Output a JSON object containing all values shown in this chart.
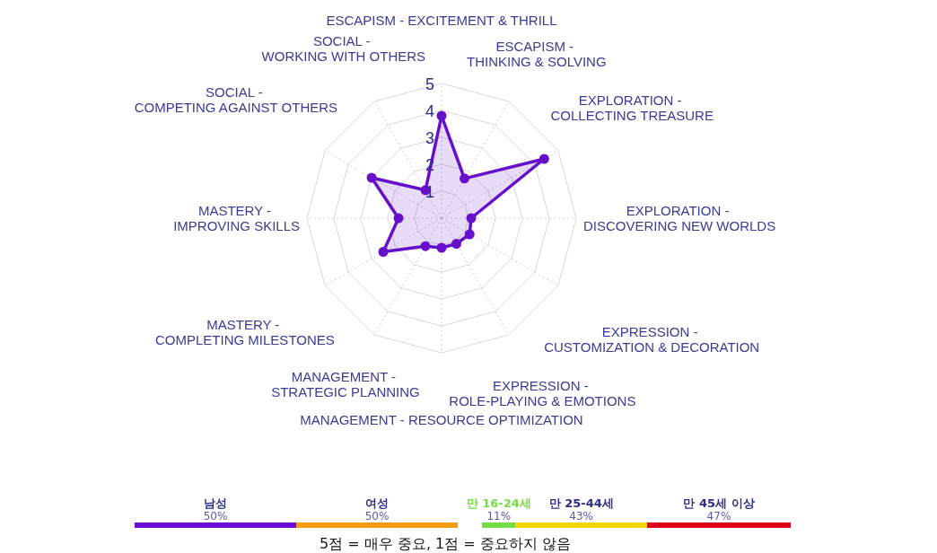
{
  "chart_data": [
    {
      "type": "radar",
      "categories": [
        "ESCAPISM - EXCITEMENT & THRILL",
        "ESCAPISM - THINKING & SOLVING",
        "EXPLORATION - COLLECTING TREASURE",
        "EXPLORATION - DISCOVERING NEW WORLDS",
        "EXPRESSION - CUSTOMIZATION & DECORATION",
        "EXPRESSION - ROLE-PLAYING & EMOTIONS",
        "MANAGEMENT - RESOURCE OPTIMIZATION",
        "MANAGEMENT - STRATEGIC PLANNING",
        "MASTERY - COMPLETING MILESTONES",
        "MASTERY - IMPROVING SKILLS",
        "SOCIAL - COMPETING AGAINST OTHERS",
        "SOCIAL - WORKING WITH OTHERS"
      ],
      "series": [
        {
          "color": "#6610cc",
          "values": [
            3.8,
            1.7,
            4.4,
            1.1,
            1.2,
            1.1,
            1.1,
            1.2,
            2.5,
            1.6,
            3.0,
            1.2
          ]
        }
      ],
      "ylim": [
        0,
        5
      ],
      "yticks": [
        1,
        2,
        3,
        4,
        5
      ],
      "marker": "circle",
      "grid": true,
      "annotations": [
        "5점 = 매우 중요, 1점 = 중요하지 않음"
      ]
    },
    {
      "type": "bar",
      "orientation": "horizontal",
      "stacked": true,
      "categories": [
        null
      ],
      "tick_labels": false,
      "series": [
        {
          "name": "남성",
          "color": "#6a0dd6",
          "values": [
            50
          ],
          "value_labels": [
            "50%"
          ]
        },
        {
          "name": "여성",
          "color": "#f39c12",
          "values": [
            50
          ],
          "value_labels": [
            "50%"
          ]
        }
      ]
    },
    {
      "type": "bar",
      "orientation": "horizontal",
      "stacked": true,
      "categories": [
        null
      ],
      "tick_labels": false,
      "series": [
        {
          "name": "만 16-24세",
          "color": "#77dd44",
          "values": [
            11
          ],
          "value_labels": [
            "11%"
          ]
        },
        {
          "name": "만 25-44세",
          "color": "#f2d600",
          "values": [
            43
          ],
          "value_labels": [
            "43%"
          ]
        },
        {
          "name": "만 45세 이상",
          "color": "#e0001a",
          "values": [
            47
          ],
          "value_labels": [
            "47%"
          ]
        }
      ]
    }
  ]
}
